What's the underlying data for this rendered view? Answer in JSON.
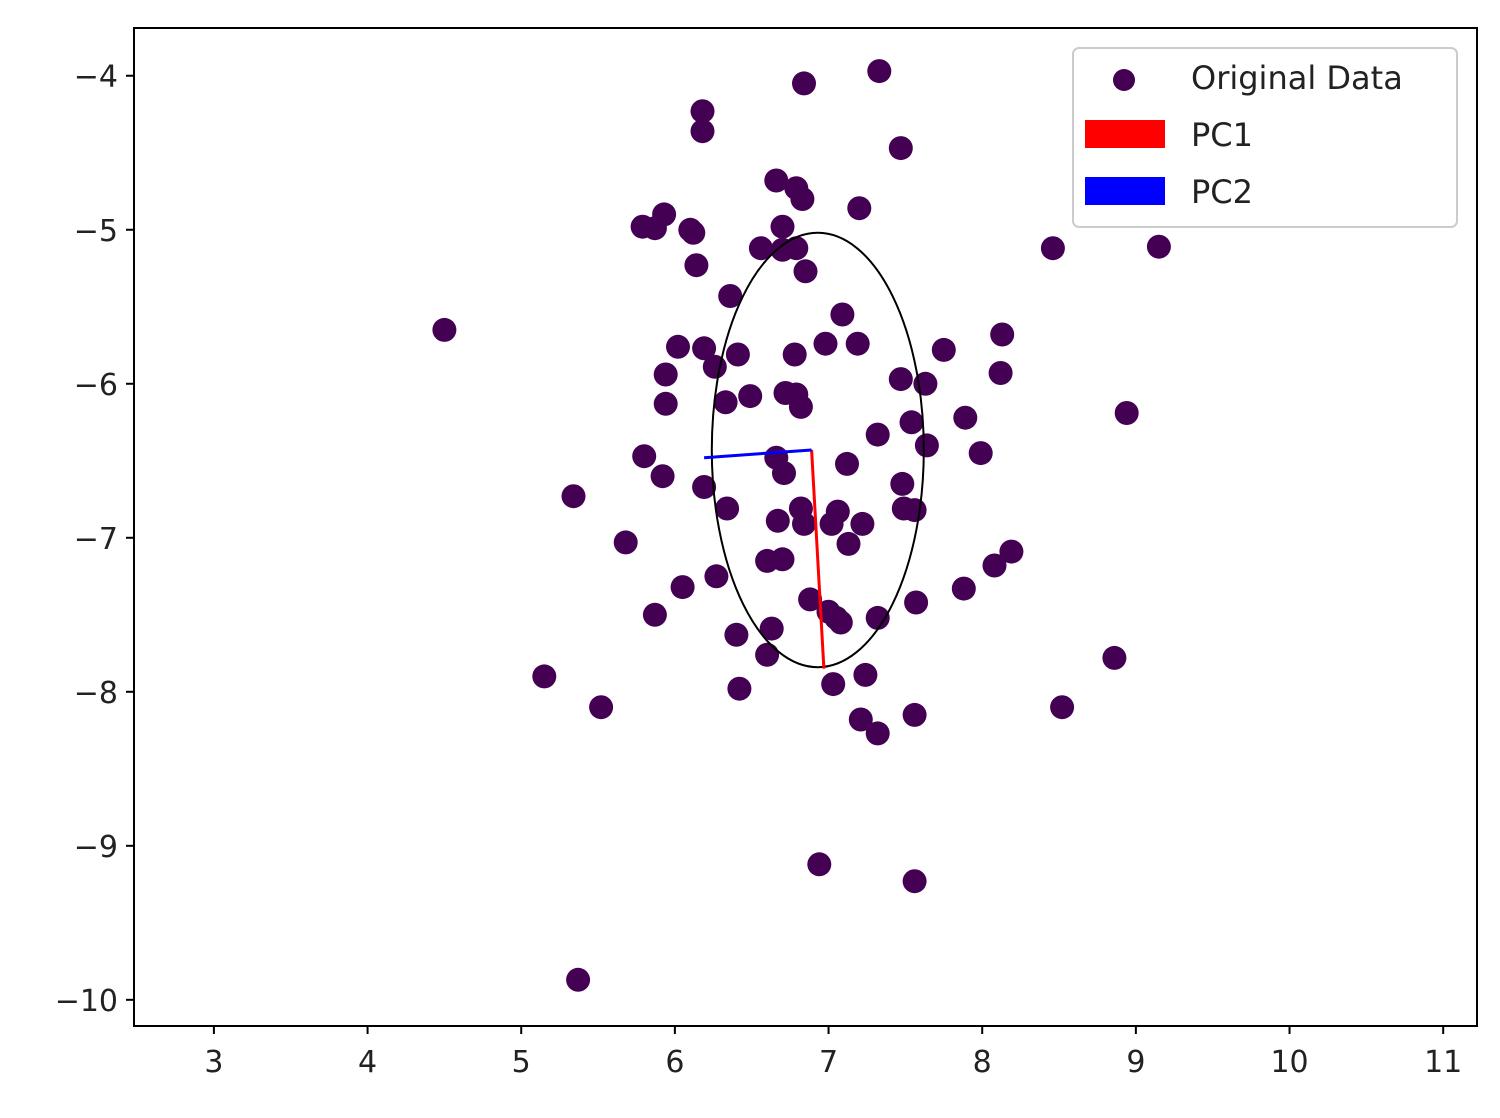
{
  "chart_data": {
    "type": "scatter",
    "xlim": [
      2.48,
      11.22
    ],
    "ylim": [
      -10.17,
      -3.69
    ],
    "xticks": [
      3,
      4,
      5,
      6,
      7,
      8,
      9,
      10,
      11
    ],
    "yticks": [
      -4,
      -5,
      -6,
      -7,
      -8,
      -9,
      -10
    ],
    "xtick_labels": [
      "3",
      "4",
      "5",
      "6",
      "7",
      "8",
      "9",
      "10",
      "11"
    ],
    "ytick_labels": [
      "−4",
      "−5",
      "−6",
      "−7",
      "−8",
      "−9",
      "−10"
    ],
    "grid": false,
    "legend_position": "top-right",
    "series": [
      {
        "name": "Original Data",
        "color": "#440154",
        "points": [
          [
            7.33,
            -3.97
          ],
          [
            6.84,
            -4.05
          ],
          [
            6.18,
            -4.23
          ],
          [
            6.18,
            -4.36
          ],
          [
            7.47,
            -4.47
          ],
          [
            6.66,
            -4.68
          ],
          [
            6.79,
            -4.73
          ],
          [
            6.83,
            -4.8
          ],
          [
            7.2,
            -4.86
          ],
          [
            5.93,
            -4.9
          ],
          [
            5.79,
            -4.98
          ],
          [
            5.87,
            -4.99
          ],
          [
            6.1,
            -5.0
          ],
          [
            6.12,
            -5.02
          ],
          [
            6.7,
            -4.98
          ],
          [
            6.56,
            -5.12
          ],
          [
            6.7,
            -5.13
          ],
          [
            6.79,
            -5.12
          ],
          [
            8.46,
            -5.12
          ],
          [
            9.15,
            -5.11
          ],
          [
            6.14,
            -5.23
          ],
          [
            6.85,
            -5.27
          ],
          [
            6.36,
            -5.43
          ],
          [
            7.09,
            -5.55
          ],
          [
            4.5,
            -5.65
          ],
          [
            8.13,
            -5.68
          ],
          [
            7.19,
            -5.74
          ],
          [
            6.98,
            -5.74
          ],
          [
            6.02,
            -5.76
          ],
          [
            6.19,
            -5.77
          ],
          [
            7.75,
            -5.78
          ],
          [
            6.41,
            -5.81
          ],
          [
            6.78,
            -5.81
          ],
          [
            6.26,
            -5.89
          ],
          [
            5.94,
            -5.94
          ],
          [
            8.12,
            -5.93
          ],
          [
            7.47,
            -5.97
          ],
          [
            7.63,
            -6.0
          ],
          [
            6.72,
            -6.06
          ],
          [
            6.79,
            -6.07
          ],
          [
            6.49,
            -6.08
          ],
          [
            6.33,
            -6.12
          ],
          [
            5.94,
            -6.13
          ],
          [
            6.82,
            -6.15
          ],
          [
            8.94,
            -6.19
          ],
          [
            7.89,
            -6.22
          ],
          [
            7.54,
            -6.25
          ],
          [
            7.32,
            -6.33
          ],
          [
            7.64,
            -6.4
          ],
          [
            7.99,
            -6.45
          ],
          [
            5.8,
            -6.47
          ],
          [
            6.66,
            -6.48
          ],
          [
            7.12,
            -6.52
          ],
          [
            6.71,
            -6.58
          ],
          [
            5.92,
            -6.6
          ],
          [
            7.48,
            -6.65
          ],
          [
            6.19,
            -6.67
          ],
          [
            5.34,
            -6.73
          ],
          [
            6.34,
            -6.81
          ],
          [
            6.82,
            -6.81
          ],
          [
            7.49,
            -6.81
          ],
          [
            7.56,
            -6.82
          ],
          [
            7.06,
            -6.83
          ],
          [
            6.67,
            -6.89
          ],
          [
            6.84,
            -6.91
          ],
          [
            7.02,
            -6.91
          ],
          [
            7.22,
            -6.91
          ],
          [
            7.13,
            -7.04
          ],
          [
            5.68,
            -7.03
          ],
          [
            8.19,
            -7.09
          ],
          [
            6.6,
            -7.15
          ],
          [
            6.7,
            -7.14
          ],
          [
            8.08,
            -7.18
          ],
          [
            6.27,
            -7.25
          ],
          [
            6.05,
            -7.32
          ],
          [
            7.88,
            -7.33
          ],
          [
            6.88,
            -7.4
          ],
          [
            7.57,
            -7.42
          ],
          [
            7.0,
            -7.48
          ],
          [
            5.87,
            -7.5
          ],
          [
            7.05,
            -7.52
          ],
          [
            7.08,
            -7.55
          ],
          [
            7.32,
            -7.52
          ],
          [
            6.63,
            -7.59
          ],
          [
            6.4,
            -7.63
          ],
          [
            6.6,
            -7.76
          ],
          [
            8.86,
            -7.78
          ],
          [
            7.24,
            -7.89
          ],
          [
            5.15,
            -7.9
          ],
          [
            7.03,
            -7.95
          ],
          [
            6.42,
            -7.98
          ],
          [
            5.52,
            -8.1
          ],
          [
            8.52,
            -8.1
          ],
          [
            7.56,
            -8.15
          ],
          [
            7.21,
            -8.18
          ],
          [
            7.32,
            -8.27
          ],
          [
            6.94,
            -9.12
          ],
          [
            7.56,
            -9.23
          ],
          [
            5.37,
            -9.87
          ]
        ]
      },
      {
        "name": "PC1",
        "color": "#ff0000",
        "segment": [
          [
            6.89,
            -6.43
          ],
          [
            6.97,
            -7.85
          ]
        ]
      },
      {
        "name": "PC2",
        "color": "#0000ff",
        "segment": [
          [
            6.89,
            -6.43
          ],
          [
            6.19,
            -6.48
          ]
        ]
      }
    ],
    "ellipse": {
      "center": [
        6.93,
        -6.43
      ],
      "semi_axis_x": 0.69,
      "semi_axis_y": 1.41,
      "color": "#000000"
    }
  },
  "legend": {
    "items": [
      {
        "label": "Original Data",
        "color": "#440154",
        "kind": "marker"
      },
      {
        "label": "PC1",
        "color": "#ff0000",
        "kind": "patch"
      },
      {
        "label": "PC2",
        "color": "#0000ff",
        "kind": "patch"
      }
    ]
  }
}
